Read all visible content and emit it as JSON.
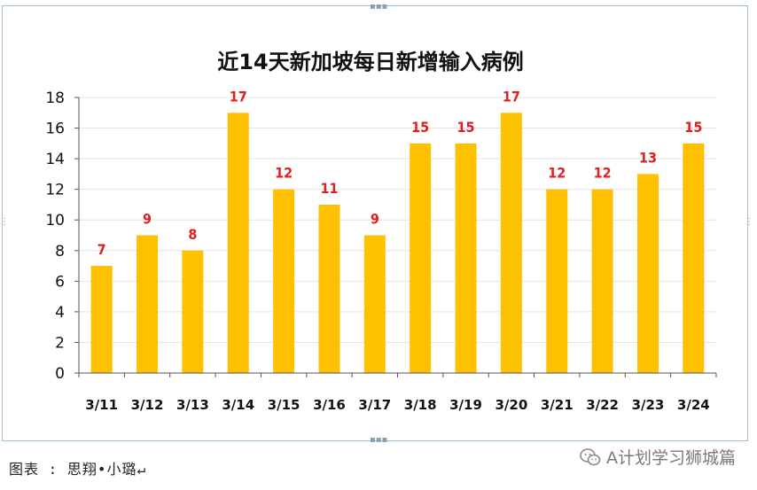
{
  "chart_data": {
    "type": "bar",
    "title": "近14天新加坡每日新增输入病例",
    "categories": [
      "3/11",
      "3/12",
      "3/13",
      "3/14",
      "3/15",
      "3/16",
      "3/17",
      "3/18",
      "3/19",
      "3/20",
      "3/21",
      "3/22",
      "3/23",
      "3/24"
    ],
    "values": [
      7,
      9,
      8,
      17,
      12,
      11,
      9,
      15,
      15,
      17,
      12,
      12,
      13,
      15
    ],
    "ylim": [
      0,
      18
    ],
    "yticks": [
      0,
      2,
      4,
      6,
      8,
      10,
      12,
      14,
      16,
      18
    ],
    "xlabel": "",
    "ylabel": "",
    "grid": true,
    "data_labels": true,
    "bar_color": "#FFC000",
    "label_color": "#E02020"
  },
  "caption": "图表 : 思翔•小璐↵",
  "watermark": {
    "text": "A计划学习狮城篇",
    "icon": "wechat-icon"
  }
}
